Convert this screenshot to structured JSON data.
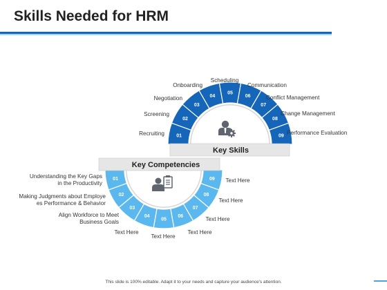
{
  "title": "Skills Needed for HRM",
  "footer": "This slide is 100% editable. Adapt it to your needs and capture your audience's attention.",
  "colors": {
    "title_rule": "#1565b8",
    "title_rule_light": "#a7d3f2",
    "key_skills_ring": "#1565b8",
    "key_competencies_ring": "#5ab8ee",
    "label_box": "#e6e6e6",
    "icon": "#5f6670"
  },
  "key_skills": {
    "label": "Key Skills",
    "icon": "user-gear-icon",
    "segments": [
      {
        "num": "01",
        "label": "Recruiting"
      },
      {
        "num": "02",
        "label": "Screening"
      },
      {
        "num": "03",
        "label": "Negotiation"
      },
      {
        "num": "04",
        "label": "Onboarding"
      },
      {
        "num": "05",
        "label": "Scheduling"
      },
      {
        "num": "06",
        "label": "Communication"
      },
      {
        "num": "07",
        "label": "Conflict Management"
      },
      {
        "num": "08",
        "label": "Change Management"
      },
      {
        "num": "09",
        "label": "Performance Evaluation"
      }
    ]
  },
  "key_competencies": {
    "label": "Key Competencies",
    "icon": "user-clipboard-icon",
    "segments": [
      {
        "num": "01",
        "label": [
          "Understanding the Key Gaps",
          "in the Productivity"
        ]
      },
      {
        "num": "02",
        "label": [
          "Making Judgments about Employe",
          "es Performance & Behavior"
        ]
      },
      {
        "num": "03",
        "label": [
          "Align Workforce to Meet",
          "Business Goals"
        ]
      },
      {
        "num": "04",
        "label": [
          "Text Here"
        ]
      },
      {
        "num": "05",
        "label": [
          "Text Here"
        ]
      },
      {
        "num": "06",
        "label": [
          "Text Here"
        ]
      },
      {
        "num": "07",
        "label": [
          "Text Here"
        ]
      },
      {
        "num": "08",
        "label": [
          "Text Here"
        ]
      },
      {
        "num": "09",
        "label": [
          "Text Here"
        ]
      }
    ]
  }
}
